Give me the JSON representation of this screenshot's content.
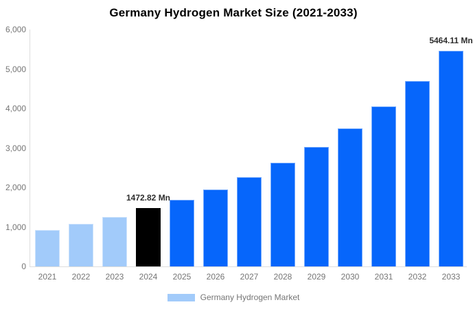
{
  "title": "Germany Hydrogen Market Size (2021-2033)",
  "legend": {
    "label": "Germany Hydrogen Market",
    "swatch_color": "#a2cbfa"
  },
  "colors": {
    "historical_bar": "#a2cbfa",
    "highlight_bar": "#000000",
    "forecast_bar": "#0666fb",
    "bar_edge": "#8fb6f2",
    "axis_line": "#dddddd",
    "axis_text": "#757575",
    "annotation_text": "#2d2d2d",
    "background": "#ffffff"
  },
  "chart_data": {
    "type": "bar",
    "title": "Germany Hydrogen Market Size (2021-2033)",
    "categories": [
      "2021",
      "2022",
      "2023",
      "2024",
      "2025",
      "2026",
      "2027",
      "2028",
      "2029",
      "2030",
      "2031",
      "2032",
      "2033"
    ],
    "series": [
      {
        "name": "Germany Hydrogen Market",
        "values": [
          920,
          1070,
          1250,
          1472.82,
          1690,
          1950,
          2260,
          2620,
          3020,
          3500,
          4060,
          4700,
          5464.11
        ]
      }
    ],
    "bar_colors": [
      "#a2cbfa",
      "#a2cbfa",
      "#a2cbfa",
      "#000000",
      "#0666fb",
      "#0666fb",
      "#0666fb",
      "#0666fb",
      "#0666fb",
      "#0666fb",
      "#0666fb",
      "#0666fb",
      "#0666fb"
    ],
    "annotations": [
      {
        "category": "2024",
        "text": "1472.82 Mn"
      },
      {
        "category": "2033",
        "text": "5464.11 Mn"
      }
    ],
    "xlabel": "",
    "ylabel": "",
    "ylim": [
      0,
      6000
    ],
    "ytick_labels": [
      "0",
      "1,000",
      "2,000",
      "3,000",
      "4,000",
      "5,000",
      "6,000"
    ],
    "ytick_values": [
      0,
      1000,
      2000,
      3000,
      4000,
      5000,
      6000
    ],
    "grid": false,
    "legend_position": "bottom"
  }
}
